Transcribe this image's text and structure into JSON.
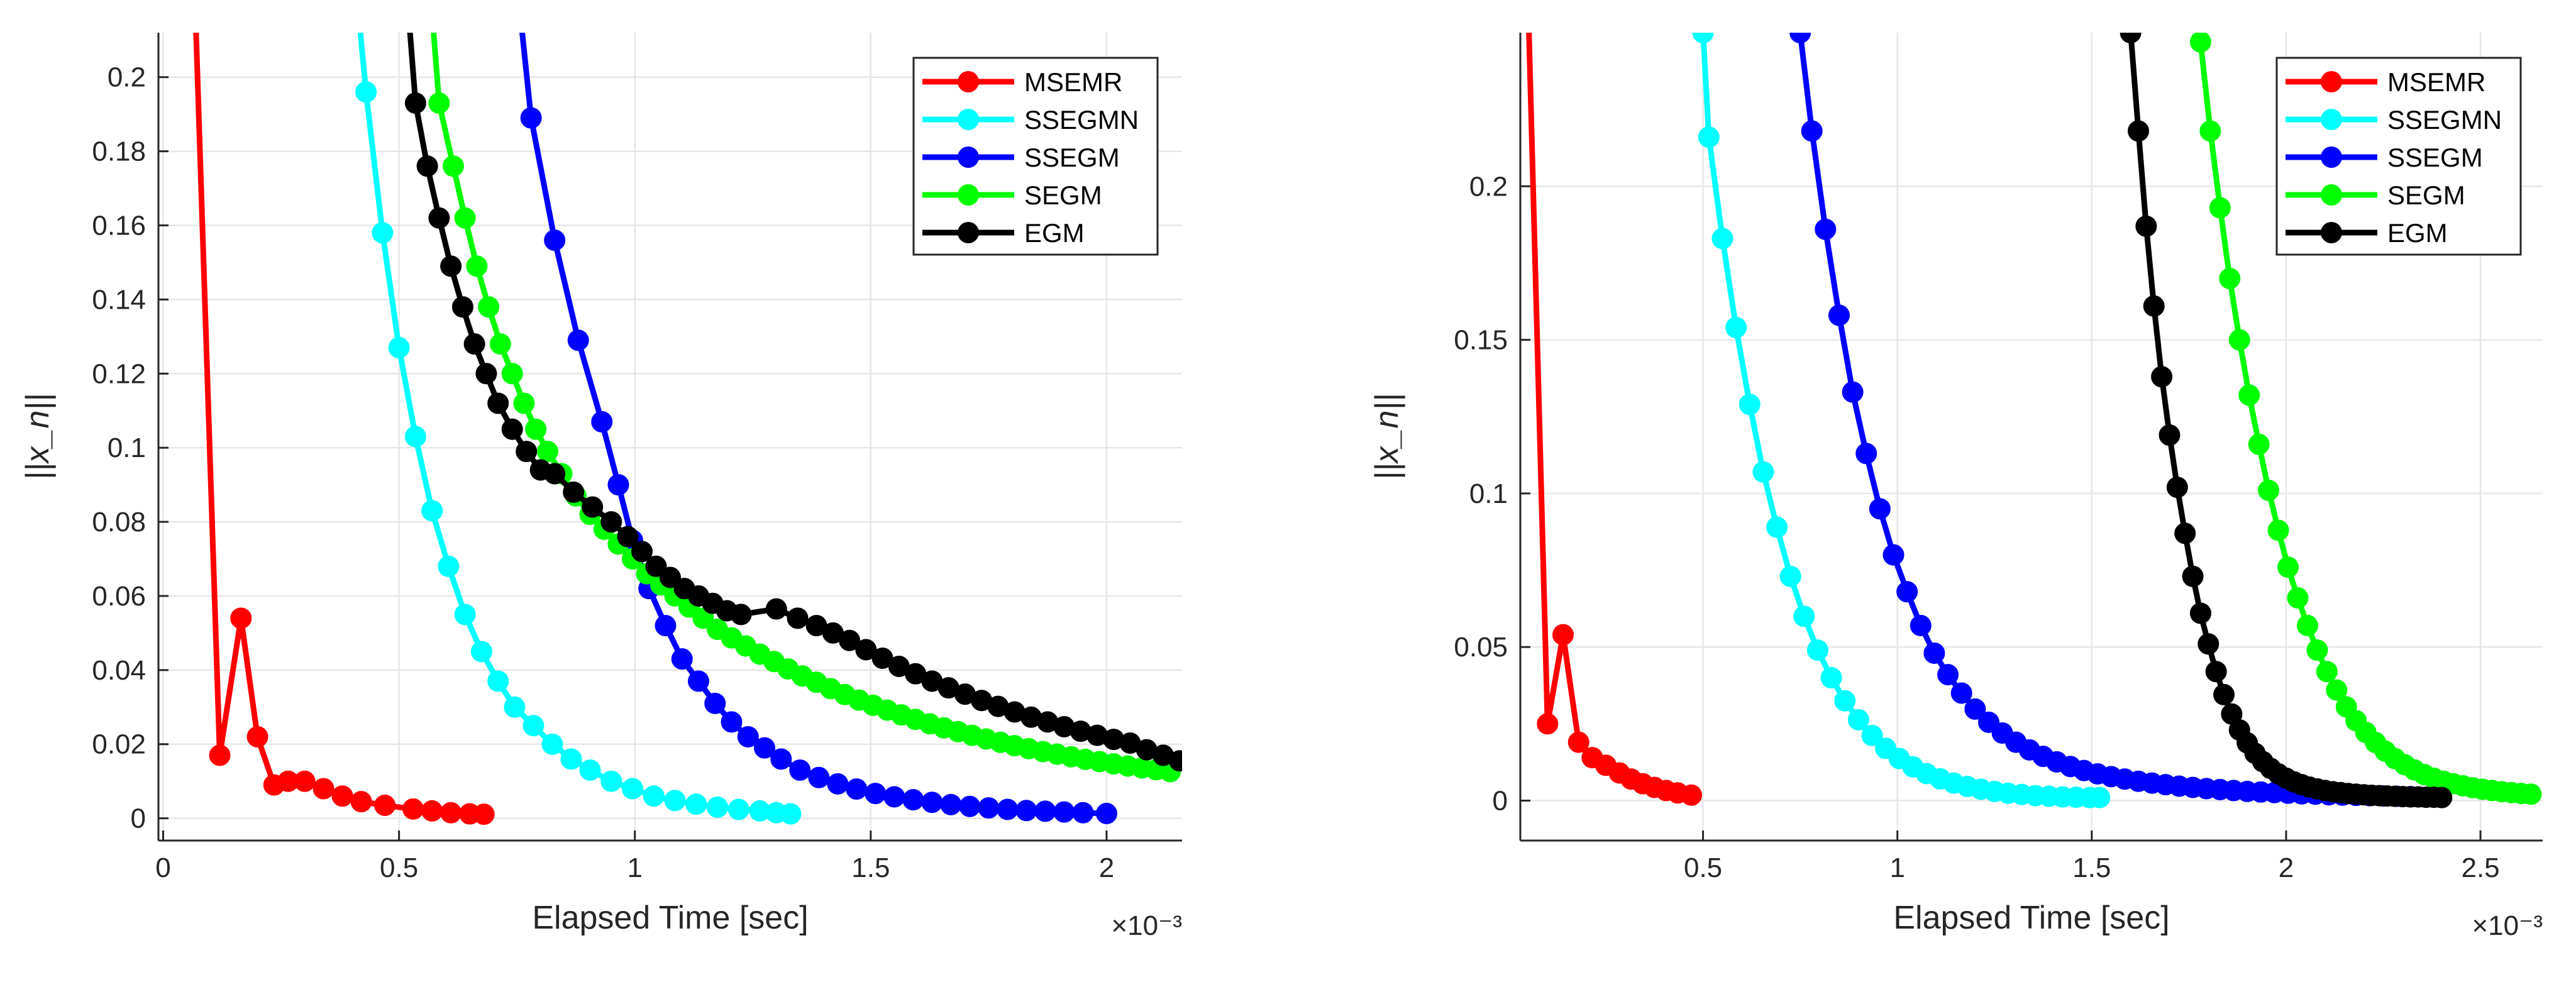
{
  "chart_data": [
    {
      "type": "line",
      "xlabel": "Elapsed Time [sec]",
      "ylabel": "||x_n||",
      "x_exponent_label": "×10⁻³",
      "x_ticks": [
        0,
        0.5,
        1,
        1.5,
        2
      ],
      "x_tick_labels": [
        "0",
        "0.5",
        "1",
        "1.5",
        "2"
      ],
      "y_ticks": [
        0,
        0.02,
        0.04,
        0.06,
        0.08,
        0.1,
        0.12,
        0.14,
        0.16,
        0.18,
        0.2
      ],
      "y_tick_labels": [
        "0",
        "0.02",
        "0.04",
        "0.06",
        "0.08",
        "0.1",
        "0.12",
        "0.14",
        "0.16",
        "0.18",
        "0.2"
      ],
      "xlim": [
        -0.01,
        2.16
      ],
      "ylim": [
        -0.006,
        0.212
      ],
      "grid": true,
      "legend_position": "top-right",
      "series": [
        {
          "name": "MSEMR",
          "color": "#ff0000",
          "x": [
            0.06,
            0.12,
            0.165,
            0.2,
            0.235,
            0.265,
            0.3,
            0.34,
            0.38,
            0.42,
            0.47,
            0.53,
            0.57,
            0.61,
            0.65,
            0.68
          ],
          "y": [
            0.25,
            0.017,
            0.054,
            0.022,
            0.009,
            0.01,
            0.01,
            0.008,
            0.006,
            0.0045,
            0.0035,
            0.0025,
            0.002,
            0.0015,
            0.0012,
            0.0011
          ]
        },
        {
          "name": "SSEGMN",
          "color": "#00ffff",
          "x": [
            0.39,
            0.43,
            0.465,
            0.5,
            0.535,
            0.57,
            0.605,
            0.64,
            0.675,
            0.71,
            0.745,
            0.785,
            0.825,
            0.865,
            0.905,
            0.95,
            0.995,
            1.04,
            1.085,
            1.13,
            1.175,
            1.22,
            1.265,
            1.3,
            1.33
          ],
          "y": [
            0.25,
            0.196,
            0.158,
            0.127,
            0.103,
            0.083,
            0.068,
            0.055,
            0.045,
            0.037,
            0.03,
            0.025,
            0.02,
            0.016,
            0.013,
            0.01,
            0.008,
            0.006,
            0.0048,
            0.0038,
            0.003,
            0.0024,
            0.002,
            0.0015,
            0.0012
          ]
        },
        {
          "name": "SSEGM",
          "color": "#0000ff",
          "x": [
            0.73,
            0.78,
            0.83,
            0.88,
            0.93,
            0.965,
            0.995,
            1.03,
            1.065,
            1.1,
            1.135,
            1.17,
            1.205,
            1.24,
            1.275,
            1.31,
            1.35,
            1.39,
            1.43,
            1.47,
            1.51,
            1.55,
            1.59,
            1.63,
            1.67,
            1.71,
            1.75,
            1.79,
            1.83,
            1.87,
            1.91,
            1.95,
            2.0
          ],
          "y": [
            0.25,
            0.189,
            0.156,
            0.129,
            0.107,
            0.09,
            0.075,
            0.062,
            0.052,
            0.043,
            0.037,
            0.031,
            0.026,
            0.022,
            0.019,
            0.016,
            0.013,
            0.011,
            0.0093,
            0.0079,
            0.0067,
            0.0058,
            0.005,
            0.0043,
            0.0037,
            0.0032,
            0.0028,
            0.0024,
            0.0021,
            0.0019,
            0.0017,
            0.0015,
            0.0013
          ]
        },
        {
          "name": "SEGM",
          "color": "#00ff00",
          "x": [
            0.55,
            0.585,
            0.615,
            0.64,
            0.665,
            0.69,
            0.715,
            0.74,
            0.765,
            0.79,
            0.815,
            0.845,
            0.875,
            0.905,
            0.935,
            0.965,
            0.995,
            1.025,
            1.055,
            1.085,
            1.115,
            1.145,
            1.175,
            1.205,
            1.235,
            1.265,
            1.295,
            1.325,
            1.355,
            1.385,
            1.415,
            1.445,
            1.475,
            1.505,
            1.535,
            1.565,
            1.595,
            1.625,
            1.655,
            1.685,
            1.715,
            1.745,
            1.775,
            1.805,
            1.835,
            1.865,
            1.895,
            1.925,
            1.955,
            1.985,
            2.015,
            2.045,
            2.075,
            2.105,
            2.135
          ],
          "y": [
            0.25,
            0.193,
            0.176,
            0.162,
            0.149,
            0.138,
            0.128,
            0.12,
            0.112,
            0.105,
            0.099,
            0.093,
            0.087,
            0.082,
            0.078,
            0.074,
            0.07,
            0.066,
            0.063,
            0.06,
            0.057,
            0.054,
            0.051,
            0.0487,
            0.0465,
            0.0443,
            0.0423,
            0.0403,
            0.0384,
            0.0367,
            0.035,
            0.0334,
            0.0319,
            0.0305,
            0.0292,
            0.0279,
            0.0267,
            0.0255,
            0.0244,
            0.0234,
            0.0224,
            0.0214,
            0.0205,
            0.0196,
            0.0188,
            0.018,
            0.0173,
            0.0166,
            0.0159,
            0.0153,
            0.0147,
            0.0141,
            0.0136,
            0.0131,
            0.0126
          ]
        },
        {
          "name": "EGM",
          "color": "#000000",
          "x": [
            0.5,
            0.535,
            0.56,
            0.585,
            0.61,
            0.635,
            0.66,
            0.685,
            0.71,
            0.74,
            0.77,
            0.8,
            0.83,
            0.87,
            0.91,
            0.95,
            0.985,
            1.015,
            1.045,
            1.075,
            1.105,
            1.135,
            1.165,
            1.195,
            1.225,
            1.3,
            1.345,
            1.385,
            1.42,
            1.455,
            1.49,
            1.525,
            1.56,
            1.595,
            1.63,
            1.665,
            1.7,
            1.735,
            1.77,
            1.805,
            1.84,
            1.875,
            1.91,
            1.945,
            1.98,
            2.015,
            2.05,
            2.085,
            2.12,
            2.155
          ],
          "y": [
            0.25,
            0.193,
            0.176,
            0.162,
            0.149,
            0.138,
            0.128,
            0.12,
            0.112,
            0.105,
            0.099,
            0.094,
            0.093,
            0.088,
            0.084,
            0.08,
            0.076,
            0.072,
            0.068,
            0.065,
            0.062,
            0.06,
            0.058,
            0.056,
            0.055,
            0.0565,
            0.054,
            0.052,
            0.05,
            0.048,
            0.0455,
            0.0432,
            0.041,
            0.039,
            0.037,
            0.0352,
            0.0335,
            0.0318,
            0.0302,
            0.0287,
            0.0273,
            0.026,
            0.0247,
            0.0235,
            0.0224,
            0.0213,
            0.0203,
            0.0185,
            0.017,
            0.0155
          ]
        }
      ]
    },
    {
      "type": "line",
      "xlabel": "Elapsed Time [sec]",
      "ylabel": "||x_n||",
      "x_exponent_label": "×10⁻³",
      "x_ticks": [
        0.5,
        1,
        1.5,
        2,
        2.5
      ],
      "x_tick_labels": [
        "0.5",
        "1",
        "1.5",
        "2",
        "2.5"
      ],
      "y_ticks": [
        0,
        0.05,
        0.1,
        0.15,
        0.2
      ],
      "y_tick_labels": [
        "0",
        "0.05",
        "0.1",
        "0.15",
        "0.2"
      ],
      "xlim": [
        0.03,
        2.66
      ],
      "ylim": [
        -0.013,
        0.25
      ],
      "grid": true,
      "legend_position": "top-right",
      "series": [
        {
          "name": "MSEMR",
          "color": "#ff0000",
          "x": [
            0.05,
            0.1,
            0.14,
            0.18,
            0.215,
            0.25,
            0.285,
            0.315,
            0.345,
            0.375,
            0.405,
            0.435,
            0.47
          ],
          "y": [
            0.26,
            0.025,
            0.054,
            0.019,
            0.014,
            0.0115,
            0.009,
            0.007,
            0.0055,
            0.0043,
            0.0033,
            0.0025,
            0.0018
          ]
        },
        {
          "name": "SSEGMN",
          "color": "#00ffff",
          "x": [
            0.5,
            0.515,
            0.55,
            0.585,
            0.62,
            0.655,
            0.69,
            0.725,
            0.76,
            0.795,
            0.83,
            0.865,
            0.9,
            0.935,
            0.97,
            1.005,
            1.04,
            1.075,
            1.11,
            1.145,
            1.18,
            1.215,
            1.25,
            1.285,
            1.32,
            1.355,
            1.39,
            1.425,
            1.46,
            1.495,
            1.52
          ],
          "y": [
            0.25,
            0.216,
            0.183,
            0.154,
            0.129,
            0.107,
            0.089,
            0.073,
            0.06,
            0.049,
            0.04,
            0.0325,
            0.0263,
            0.0212,
            0.017,
            0.0137,
            0.011,
            0.0088,
            0.0071,
            0.0057,
            0.0046,
            0.0037,
            0.003,
            0.0024,
            0.002,
            0.0016,
            0.0014,
            0.0012,
            0.0011,
            0.001,
            0.001
          ]
        },
        {
          "name": "SSEGM",
          "color": "#0000ff",
          "x": [
            0.75,
            0.78,
            0.815,
            0.85,
            0.885,
            0.92,
            0.955,
            0.99,
            1.025,
            1.06,
            1.095,
            1.13,
            1.165,
            1.2,
            1.235,
            1.27,
            1.305,
            1.34,
            1.375,
            1.41,
            1.445,
            1.48,
            1.515,
            1.55,
            1.585,
            1.62,
            1.655,
            1.69,
            1.725,
            1.76,
            1.795,
            1.83,
            1.865,
            1.9,
            1.935,
            1.97,
            2.005,
            2.04,
            2.075,
            2.11,
            2.145,
            2.18,
            2.215,
            2.25,
            2.285,
            2.32
          ],
          "y": [
            0.25,
            0.218,
            0.186,
            0.158,
            0.133,
            0.113,
            0.095,
            0.08,
            0.068,
            0.057,
            0.048,
            0.041,
            0.035,
            0.0298,
            0.0255,
            0.022,
            0.019,
            0.0165,
            0.0144,
            0.0126,
            0.0111,
            0.0098,
            0.0087,
            0.0078,
            0.007,
            0.0063,
            0.0057,
            0.0052,
            0.0047,
            0.0043,
            0.0039,
            0.0036,
            0.0033,
            0.003,
            0.0028,
            0.0026,
            0.0024,
            0.0022,
            0.0021,
            0.0019,
            0.0018,
            0.0017,
            0.0016,
            0.0015,
            0.0014,
            0.0013
          ]
        },
        {
          "name": "SEGM",
          "color": "#00ff00",
          "x": [
            1.78,
            1.805,
            1.83,
            1.855,
            1.88,
            1.905,
            1.93,
            1.955,
            1.98,
            2.005,
            2.03,
            2.055,
            2.08,
            2.105,
            2.13,
            2.155,
            2.18,
            2.205,
            2.23,
            2.255,
            2.28,
            2.305,
            2.33,
            2.355,
            2.38,
            2.405,
            2.43,
            2.455,
            2.48,
            2.505,
            2.53,
            2.555,
            2.58,
            2.605,
            2.63
          ],
          "y": [
            0.247,
            0.218,
            0.193,
            0.17,
            0.15,
            0.132,
            0.116,
            0.101,
            0.088,
            0.076,
            0.066,
            0.057,
            0.049,
            0.042,
            0.036,
            0.0305,
            0.026,
            0.0222,
            0.0189,
            0.0161,
            0.0137,
            0.0117,
            0.01,
            0.0085,
            0.0073,
            0.0063,
            0.0055,
            0.0048,
            0.0042,
            0.0037,
            0.0033,
            0.0029,
            0.0026,
            0.0023,
            0.0021
          ]
        },
        {
          "name": "EGM",
          "color": "#000000",
          "x": [
            1.6,
            1.62,
            1.64,
            1.66,
            1.68,
            1.7,
            1.72,
            1.74,
            1.76,
            1.78,
            1.8,
            1.82,
            1.84,
            1.86,
            1.88,
            1.9,
            1.92,
            1.94,
            1.96,
            1.98,
            2.0,
            2.02,
            2.04,
            2.06,
            2.08,
            2.1,
            2.12,
            2.14,
            2.16,
            2.18,
            2.2,
            2.22,
            2.24,
            2.26,
            2.28,
            2.3,
            2.32,
            2.34,
            2.36,
            2.38,
            2.4
          ],
          "y": [
            0.25,
            0.218,
            0.187,
            0.161,
            0.138,
            0.119,
            0.102,
            0.087,
            0.073,
            0.061,
            0.051,
            0.042,
            0.0345,
            0.0282,
            0.023,
            0.0188,
            0.0154,
            0.0127,
            0.0105,
            0.0087,
            0.0073,
            0.0061,
            0.0052,
            0.0044,
            0.0038,
            0.0033,
            0.0029,
            0.0026,
            0.0023,
            0.0021,
            0.0019,
            0.0017,
            0.0016,
            0.0015,
            0.0014,
            0.0013,
            0.0012,
            0.0012,
            0.0011,
            0.0011,
            0.001
          ]
        }
      ]
    }
  ]
}
